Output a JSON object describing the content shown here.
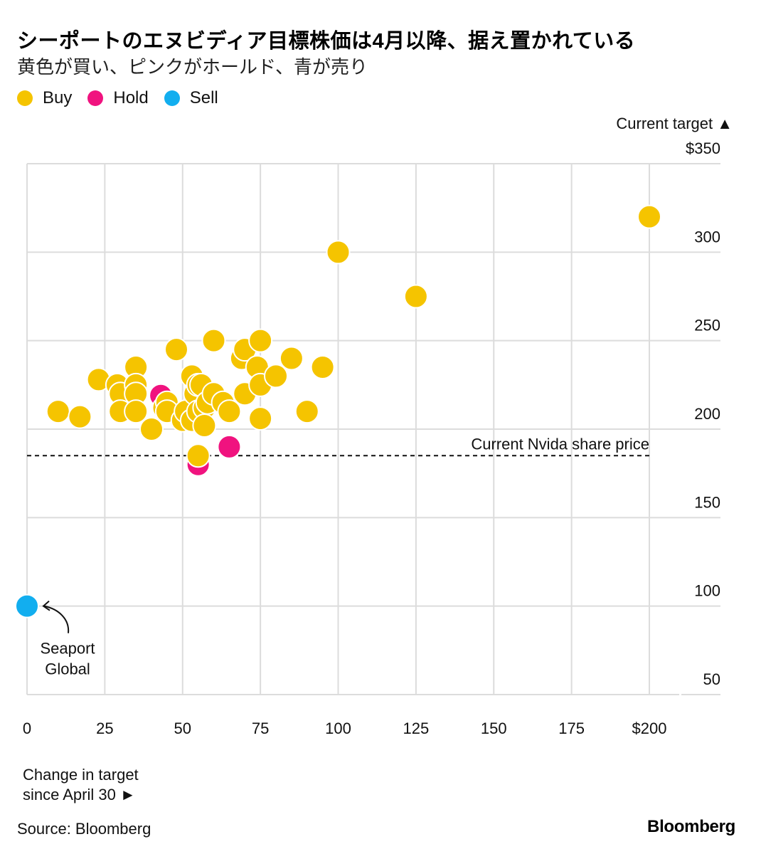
{
  "title": "シーポートのエヌビディア目標株価は4月以降、据え置かれている",
  "subtitle": "黄色が買い、ピンクがホールド、青が売り",
  "legend": [
    {
      "label": "Buy",
      "color": "#F5C400"
    },
    {
      "label": "Hold",
      "color": "#F0137F"
    },
    {
      "label": "Sell",
      "color": "#12AEEF"
    }
  ],
  "source": "Source: Bloomberg",
  "brand": "Bloomberg",
  "chart_data": {
    "type": "scatter",
    "ylabel": "Current target ▲",
    "xlabel_lines": [
      "Change in target",
      "since April 30 ►"
    ],
    "xlim": [
      0,
      200
    ],
    "ylim": [
      50,
      350
    ],
    "x_ticks": [
      {
        "value": 0,
        "label": "0"
      },
      {
        "value": 25,
        "label": "25"
      },
      {
        "value": 50,
        "label": "50"
      },
      {
        "value": 75,
        "label": "75"
      },
      {
        "value": 100,
        "label": "100"
      },
      {
        "value": 125,
        "label": "125"
      },
      {
        "value": 150,
        "label": "150"
      },
      {
        "value": 175,
        "label": "175"
      },
      {
        "value": 200,
        "label": "$200"
      }
    ],
    "y_ticks": [
      {
        "value": 350,
        "label": "$350"
      },
      {
        "value": 300,
        "label": "300"
      },
      {
        "value": 250,
        "label": "250"
      },
      {
        "value": 200,
        "label": "200"
      },
      {
        "value": 150,
        "label": "150"
      },
      {
        "value": 100,
        "label": "100"
      },
      {
        "value": 50,
        "label": "50"
      }
    ],
    "grid": true,
    "reference_line": {
      "value": 185,
      "label": "Current Nvida share price"
    },
    "annotation": {
      "text_lines": [
        "Seaport",
        "Global"
      ],
      "x": 0,
      "y": 100
    },
    "series": [
      {
        "name": "Hold",
        "color": "#F0137F",
        "points": [
          {
            "x": 43,
            "y": 219
          },
          {
            "x": 55,
            "y": 180
          },
          {
            "x": 65,
            "y": 190
          },
          {
            "x": 57,
            "y": 215
          }
        ]
      },
      {
        "name": "Sell",
        "color": "#12AEEF",
        "points": [
          {
            "x": 0,
            "y": 100
          }
        ]
      },
      {
        "name": "Buy",
        "color": "#F5C400",
        "points": [
          {
            "x": 10,
            "y": 210
          },
          {
            "x": 17,
            "y": 207
          },
          {
            "x": 23,
            "y": 228
          },
          {
            "x": 29,
            "y": 225
          },
          {
            "x": 30,
            "y": 220
          },
          {
            "x": 30,
            "y": 210
          },
          {
            "x": 35,
            "y": 235
          },
          {
            "x": 35,
            "y": 225
          },
          {
            "x": 35,
            "y": 220
          },
          {
            "x": 35,
            "y": 210
          },
          {
            "x": 40,
            "y": 200
          },
          {
            "x": 44,
            "y": 212
          },
          {
            "x": 45,
            "y": 215
          },
          {
            "x": 45,
            "y": 210
          },
          {
            "x": 48,
            "y": 245
          },
          {
            "x": 50,
            "y": 205
          },
          {
            "x": 51,
            "y": 210
          },
          {
            "x": 53,
            "y": 230
          },
          {
            "x": 53,
            "y": 205
          },
          {
            "x": 54,
            "y": 220
          },
          {
            "x": 55,
            "y": 210
          },
          {
            "x": 55,
            "y": 225
          },
          {
            "x": 56,
            "y": 225
          },
          {
            "x": 57,
            "y": 212
          },
          {
            "x": 57,
            "y": 202
          },
          {
            "x": 58,
            "y": 215
          },
          {
            "x": 60,
            "y": 250
          },
          {
            "x": 60,
            "y": 220
          },
          {
            "x": 63,
            "y": 215
          },
          {
            "x": 65,
            "y": 210
          },
          {
            "x": 69,
            "y": 240
          },
          {
            "x": 70,
            "y": 245
          },
          {
            "x": 70,
            "y": 220
          },
          {
            "x": 74,
            "y": 235
          },
          {
            "x": 75,
            "y": 250
          },
          {
            "x": 75,
            "y": 225
          },
          {
            "x": 75,
            "y": 206
          },
          {
            "x": 80,
            "y": 230
          },
          {
            "x": 85,
            "y": 240
          },
          {
            "x": 90,
            "y": 210
          },
          {
            "x": 95,
            "y": 235
          },
          {
            "x": 100,
            "y": 300
          },
          {
            "x": 125,
            "y": 275
          },
          {
            "x": 200,
            "y": 320
          },
          {
            "x": 55,
            "y": 185
          }
        ]
      }
    ]
  }
}
